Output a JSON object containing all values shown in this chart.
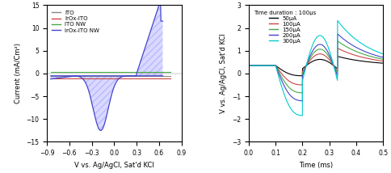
{
  "left": {
    "xlim": [
      -0.9,
      0.9
    ],
    "ylim": [
      -15,
      15
    ],
    "xlabel": "V vs. Ag/AgCl, Sat'd KCl",
    "ylabel": "Current (mA/Cm²)",
    "xticks": [
      -0.9,
      -0.6,
      -0.3,
      0.0,
      0.3,
      0.6,
      0.9
    ],
    "yticks": [
      -15,
      -10,
      -5,
      0,
      5,
      10,
      15
    ],
    "legend": [
      "ITO",
      "IrOx-ITO",
      "ITO NW",
      "IrOx-ITO NW"
    ],
    "colors": [
      "#888888",
      "#cc4444",
      "#44aa44",
      "#4444cc"
    ]
  },
  "right": {
    "xlim": [
      0.0,
      0.5
    ],
    "ylim": [
      -3,
      3
    ],
    "xlabel": "Time (ms)",
    "ylabel": "V vs. Ag/AgCl, Sat'd KCl",
    "xticks": [
      0.0,
      0.1,
      0.2,
      0.3,
      0.4,
      0.5
    ],
    "yticks": [
      -3,
      -2,
      -1,
      0,
      1,
      2,
      3
    ],
    "legend": [
      "50μA",
      "100μA",
      "150μA",
      "200μA",
      "300μA"
    ],
    "colors": [
      "#000000",
      "#cc4444",
      "#44aa44",
      "#4444cc",
      "#00cccc"
    ],
    "annotation": "Time duration : 100μs"
  }
}
